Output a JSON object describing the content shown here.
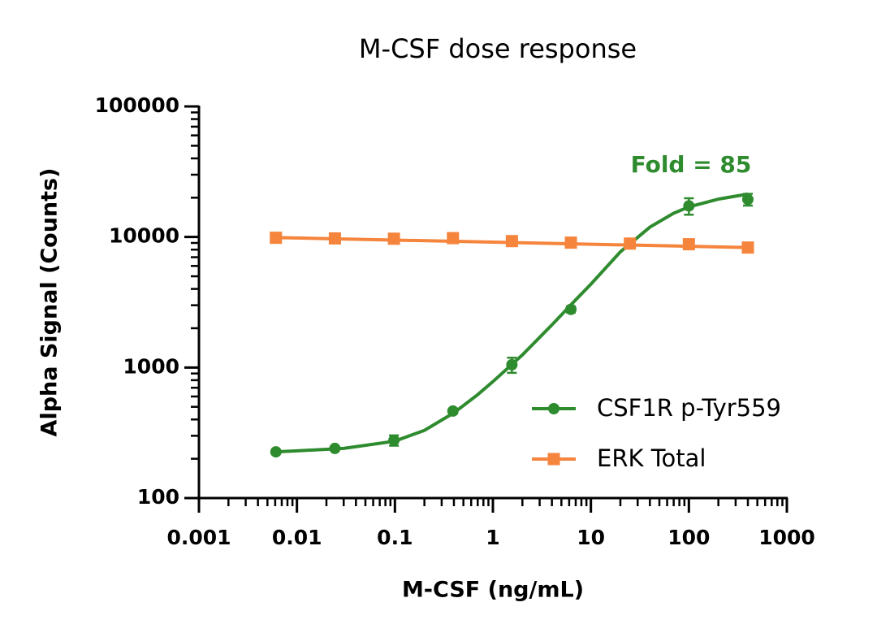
{
  "chart_data": {
    "type": "scatter",
    "title": "M-CSF dose response",
    "x_label": "M-CSF (ng/mL)",
    "y_label": "Alpha Signal (Counts)",
    "annotation": "Fold = 85",
    "annotation_color": "#2e8b2e",
    "x_scale": "log",
    "y_scale": "log",
    "xlim": [
      0.001,
      1000
    ],
    "ylim": [
      100,
      100000
    ],
    "xticks": [
      0.001,
      0.01,
      0.1,
      1,
      10,
      100,
      1000
    ],
    "yticks": [
      100,
      1000,
      10000,
      100000
    ],
    "minor_ticks": true,
    "legend": "lower right",
    "series": [
      {
        "name": "CSF1R p-Tyr559",
        "color": "#2e8b2e",
        "marker": "circle",
        "x": [
          0.0061,
          0.0244,
          0.0977,
          0.391,
          1.5625,
          6.25,
          25,
          100,
          400
        ],
        "values": [
          226,
          240,
          277,
          464,
          1050,
          2790,
          8900,
          17300,
          19400
        ],
        "errors": [
          8,
          8,
          25,
          20,
          140,
          150,
          600,
          2500,
          2000
        ],
        "fit_x": [
          0.0061,
          0.01,
          0.03,
          0.1,
          0.2,
          0.4,
          0.7,
          1,
          2,
          4,
          7,
          10,
          20,
          40,
          70,
          100,
          200,
          400
        ],
        "fit_values": [
          226,
          230,
          240,
          273,
          330,
          450,
          620,
          780,
          1250,
          2120,
          3300,
          4350,
          7700,
          11900,
          15200,
          17000,
          19500,
          21300
        ]
      },
      {
        "name": "ERK Total",
        "color": "#f5843c",
        "marker": "square",
        "x": [
          0.0061,
          0.0244,
          0.0977,
          0.391,
          1.5625,
          6.25,
          25,
          100,
          400
        ],
        "values": [
          9860,
          9750,
          9700,
          9800,
          9300,
          9050,
          8900,
          8800,
          8300
        ],
        "errors": [
          300,
          300,
          300,
          350,
          350,
          600,
          700,
          400,
          300
        ],
        "fit_x": [
          0.0061,
          400
        ],
        "fit_values": [
          9900,
          8300
        ]
      }
    ]
  }
}
